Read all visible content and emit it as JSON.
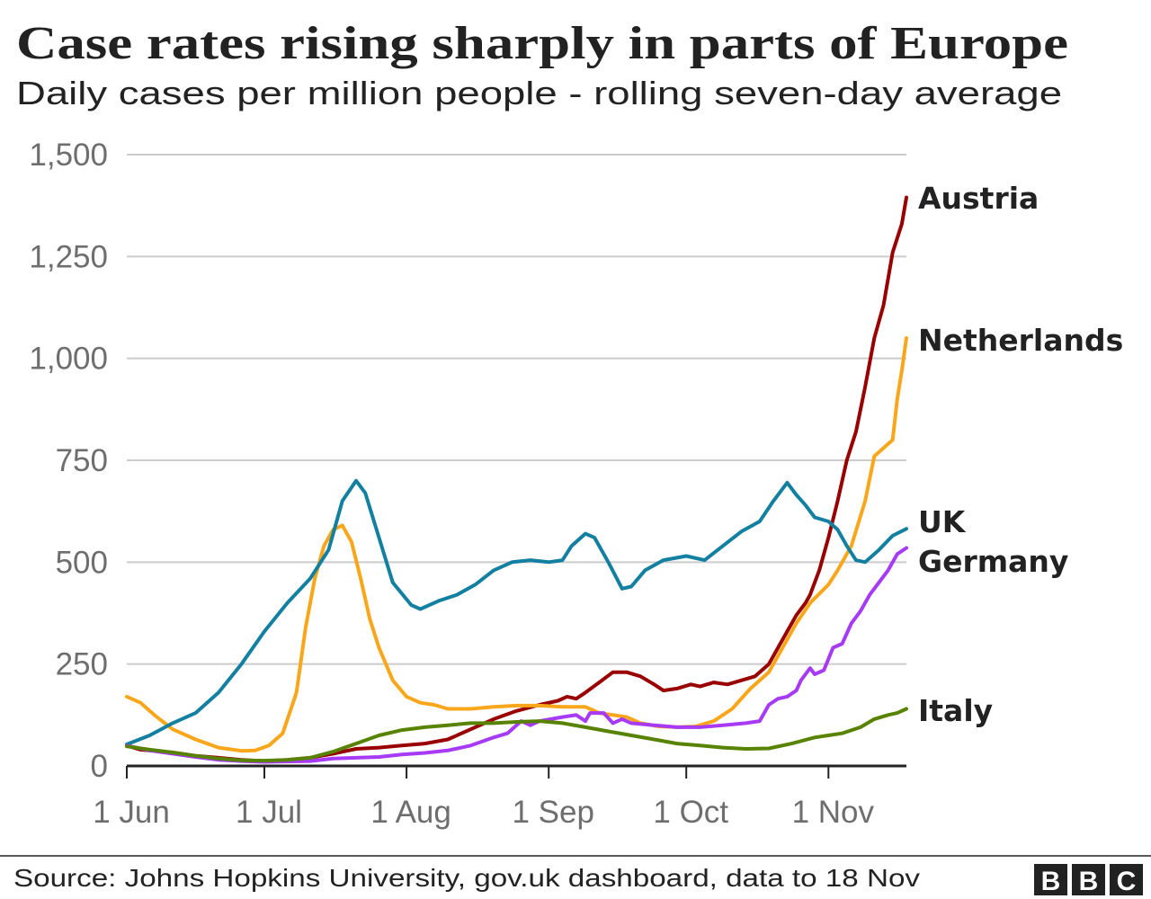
{
  "chart_data": {
    "type": "line",
    "title": "Case rates rising sharply in parts of Europe",
    "subtitle": "Daily cases per million people - rolling seven-day average",
    "xlabel": "",
    "ylabel": "",
    "ylim": [
      0,
      1500
    ],
    "xlim": [
      "1 Jun",
      "18 Nov"
    ],
    "y_ticks": [
      "0",
      "250",
      "500",
      "750",
      "1,000",
      "1,250",
      "1,500"
    ],
    "y_tick_values": [
      0,
      250,
      500,
      750,
      1000,
      1250,
      1500
    ],
    "x_ticks": [
      "1 Jun",
      "1 Jul",
      "1 Aug",
      "1 Sep",
      "1 Oct",
      "1 Nov"
    ],
    "grid": "horizontal",
    "legend": "direct labels at line ends",
    "series": [
      {
        "name": "Austria",
        "color": "#990000",
        "points": [
          [
            "1 Jun",
            50
          ],
          [
            "4 Jun",
            40
          ],
          [
            "7 Jun",
            37
          ],
          [
            "11 Jun",
            33
          ],
          [
            "16 Jun",
            25
          ],
          [
            "21 Jun",
            20
          ],
          [
            "26 Jun",
            15
          ],
          [
            "1 Jul",
            12
          ],
          [
            "6 Jul",
            15
          ],
          [
            "11 Jul",
            20
          ],
          [
            "16 Jul",
            30
          ],
          [
            "21 Jul",
            42
          ],
          [
            "26 Jul",
            45
          ],
          [
            "31 Jul",
            50
          ],
          [
            "5 Aug",
            55
          ],
          [
            "10 Aug",
            65
          ],
          [
            "15 Aug",
            90
          ],
          [
            "20 Aug",
            115
          ],
          [
            "25 Aug",
            135
          ],
          [
            "30 Aug",
            150
          ],
          [
            "3 Sep",
            160
          ],
          [
            "5 Sep",
            170
          ],
          [
            "7 Sep",
            165
          ],
          [
            "9 Sep",
            180
          ],
          [
            "12 Sep",
            205
          ],
          [
            "15 Sep",
            230
          ],
          [
            "18 Sep",
            230
          ],
          [
            "21 Sep",
            220
          ],
          [
            "24 Sep",
            200
          ],
          [
            "26 Sep",
            185
          ],
          [
            "29 Sep",
            190
          ],
          [
            "2 Oct",
            200
          ],
          [
            "4 Oct",
            195
          ],
          [
            "7 Oct",
            205
          ],
          [
            "10 Oct",
            200
          ],
          [
            "13 Oct",
            210
          ],
          [
            "16 Oct",
            220
          ],
          [
            "19 Oct",
            250
          ],
          [
            "21 Oct",
            290
          ],
          [
            "23 Oct",
            330
          ],
          [
            "25 Oct",
            370
          ],
          [
            "27 Oct",
            400
          ],
          [
            "28 Oct",
            420
          ],
          [
            "30 Oct",
            480
          ],
          [
            "1 Nov",
            560
          ],
          [
            "3 Nov",
            650
          ],
          [
            "5 Nov",
            750
          ],
          [
            "7 Nov",
            820
          ],
          [
            "9 Nov",
            930
          ],
          [
            "11 Nov",
            1050
          ],
          [
            "13 Nov",
            1130
          ],
          [
            "15 Nov",
            1260
          ],
          [
            "17 Nov",
            1330
          ],
          [
            "18 Nov",
            1395
          ]
        ]
      },
      {
        "name": "Netherlands",
        "color": "#FAA61A",
        "points": [
          [
            "1 Jun",
            170
          ],
          [
            "4 Jun",
            155
          ],
          [
            "7 Jun",
            125
          ],
          [
            "11 Jun",
            90
          ],
          [
            "16 Jun",
            65
          ],
          [
            "21 Jun",
            45
          ],
          [
            "26 Jun",
            37
          ],
          [
            "29 Jun",
            38
          ],
          [
            "2 Jul",
            50
          ],
          [
            "5 Jul",
            80
          ],
          [
            "8 Jul",
            180
          ],
          [
            "10 Jul",
            340
          ],
          [
            "12 Jul",
            460
          ],
          [
            "14 Jul",
            540
          ],
          [
            "16 Jul",
            580
          ],
          [
            "18 Jul",
            590
          ],
          [
            "20 Jul",
            550
          ],
          [
            "22 Jul",
            460
          ],
          [
            "24 Jul",
            360
          ],
          [
            "26 Jul",
            290
          ],
          [
            "29 Jul",
            210
          ],
          [
            "1 Aug",
            170
          ],
          [
            "4 Aug",
            155
          ],
          [
            "7 Aug",
            150
          ],
          [
            "10 Aug",
            140
          ],
          [
            "15 Aug",
            140
          ],
          [
            "20 Aug",
            145
          ],
          [
            "25 Aug",
            148
          ],
          [
            "30 Aug",
            148
          ],
          [
            "4 Sep",
            145
          ],
          [
            "9 Sep",
            145
          ],
          [
            "12 Sep",
            130
          ],
          [
            "15 Sep",
            125
          ],
          [
            "18 Sep",
            120
          ],
          [
            "21 Sep",
            105
          ],
          [
            "25 Sep",
            97
          ],
          [
            "29 Sep",
            95
          ],
          [
            "3 Oct",
            97
          ],
          [
            "7 Oct",
            110
          ],
          [
            "11 Oct",
            140
          ],
          [
            "15 Oct",
            190
          ],
          [
            "19 Oct",
            230
          ],
          [
            "22 Oct",
            290
          ],
          [
            "25 Oct",
            350
          ],
          [
            "28 Oct",
            400
          ],
          [
            "1 Nov",
            445
          ],
          [
            "3 Nov",
            480
          ],
          [
            "6 Nov",
            540
          ],
          [
            "9 Nov",
            650
          ],
          [
            "11 Nov",
            760
          ],
          [
            "13 Nov",
            780
          ],
          [
            "15 Nov",
            800
          ],
          [
            "16 Nov",
            900
          ],
          [
            "17 Nov",
            970
          ],
          [
            "18 Nov",
            1050
          ]
        ]
      },
      {
        "name": "UK",
        "color": "#1380A1",
        "points": [
          [
            "1 Jun",
            53
          ],
          [
            "6 Jun",
            75
          ],
          [
            "11 Jun",
            105
          ],
          [
            "16 Jun",
            130
          ],
          [
            "21 Jun",
            180
          ],
          [
            "26 Jun",
            250
          ],
          [
            "1 Jul",
            330
          ],
          [
            "6 Jul",
            400
          ],
          [
            "11 Jul",
            460
          ],
          [
            "15 Jul",
            530
          ],
          [
            "18 Jul",
            650
          ],
          [
            "21 Jul",
            700
          ],
          [
            "23 Jul",
            670
          ],
          [
            "26 Jul",
            560
          ],
          [
            "29 Jul",
            450
          ],
          [
            "2 Aug",
            395
          ],
          [
            "4 Aug",
            385
          ],
          [
            "8 Aug",
            405
          ],
          [
            "12 Aug",
            420
          ],
          [
            "16 Aug",
            445
          ],
          [
            "20 Aug",
            480
          ],
          [
            "24 Aug",
            500
          ],
          [
            "28 Aug",
            505
          ],
          [
            "1 Sep",
            500
          ],
          [
            "4 Sep",
            505
          ],
          [
            "6 Sep",
            540
          ],
          [
            "9 Sep",
            570
          ],
          [
            "11 Sep",
            560
          ],
          [
            "14 Sep",
            500
          ],
          [
            "17 Sep",
            435
          ],
          [
            "19 Sep",
            440
          ],
          [
            "22 Sep",
            480
          ],
          [
            "26 Sep",
            505
          ],
          [
            "1 Oct",
            515
          ],
          [
            "5 Oct",
            505
          ],
          [
            "9 Oct",
            540
          ],
          [
            "13 Oct",
            575
          ],
          [
            "17 Oct",
            600
          ],
          [
            "20 Oct",
            650
          ],
          [
            "23 Oct",
            695
          ],
          [
            "25 Oct",
            665
          ],
          [
            "27 Oct",
            640
          ],
          [
            "29 Oct",
            610
          ],
          [
            "1 Nov",
            600
          ],
          [
            "3 Nov",
            580
          ],
          [
            "5 Nov",
            540
          ],
          [
            "7 Nov",
            505
          ],
          [
            "9 Nov",
            500
          ],
          [
            "12 Nov",
            530
          ],
          [
            "15 Nov",
            565
          ],
          [
            "18 Nov",
            582
          ]
        ]
      },
      {
        "name": "Germany",
        "color": "#A63AF5",
        "points": [
          [
            "1 Jun",
            50
          ],
          [
            "6 Jun",
            38
          ],
          [
            "11 Jun",
            30
          ],
          [
            "16 Jun",
            22
          ],
          [
            "21 Jun",
            15
          ],
          [
            "26 Jun",
            12
          ],
          [
            "1 Jul",
            10
          ],
          [
            "11 Jul",
            12
          ],
          [
            "16 Jul",
            18
          ],
          [
            "21 Jul",
            20
          ],
          [
            "26 Jul",
            22
          ],
          [
            "31 Jul",
            28
          ],
          [
            "5 Aug",
            32
          ],
          [
            "10 Aug",
            38
          ],
          [
            "15 Aug",
            50
          ],
          [
            "20 Aug",
            70
          ],
          [
            "23 Aug",
            80
          ],
          [
            "26 Aug",
            110
          ],
          [
            "28 Aug",
            100
          ],
          [
            "30 Aug",
            110
          ],
          [
            "4 Sep",
            120
          ],
          [
            "7 Sep",
            125
          ],
          [
            "9 Sep",
            110
          ],
          [
            "10 Sep",
            130
          ],
          [
            "13 Sep",
            130
          ],
          [
            "15 Sep",
            105
          ],
          [
            "17 Sep",
            115
          ],
          [
            "19 Sep",
            105
          ],
          [
            "24 Sep",
            100
          ],
          [
            "29 Sep",
            95
          ],
          [
            "4 Oct",
            95
          ],
          [
            "9 Oct",
            100
          ],
          [
            "14 Oct",
            105
          ],
          [
            "17 Oct",
            110
          ],
          [
            "19 Oct",
            150
          ],
          [
            "21 Oct",
            165
          ],
          [
            "23 Oct",
            170
          ],
          [
            "25 Oct",
            185
          ],
          [
            "26 Oct",
            210
          ],
          [
            "28 Oct",
            240
          ],
          [
            "29 Oct",
            225
          ],
          [
            "31 Oct",
            235
          ],
          [
            "2 Nov",
            290
          ],
          [
            "4 Nov",
            300
          ],
          [
            "6 Nov",
            350
          ],
          [
            "8 Nov",
            380
          ],
          [
            "10 Nov",
            420
          ],
          [
            "12 Nov",
            450
          ],
          [
            "14 Nov",
            480
          ],
          [
            "16 Nov",
            520
          ],
          [
            "18 Nov",
            535
          ]
        ]
      },
      {
        "name": "Italy",
        "color": "#588300",
        "points": [
          [
            "1 Jun",
            48
          ],
          [
            "6 Jun",
            40
          ],
          [
            "11 Jun",
            33
          ],
          [
            "16 Jun",
            25
          ],
          [
            "21 Jun",
            18
          ],
          [
            "26 Jun",
            14
          ],
          [
            "1 Jul",
            13
          ],
          [
            "6 Jul",
            15
          ],
          [
            "11 Jul",
            20
          ],
          [
            "16 Jul",
            35
          ],
          [
            "21 Jul",
            55
          ],
          [
            "26 Jul",
            75
          ],
          [
            "31 Jul",
            88
          ],
          [
            "5 Aug",
            95
          ],
          [
            "10 Aug",
            100
          ],
          [
            "15 Aug",
            105
          ],
          [
            "20 Aug",
            105
          ],
          [
            "25 Aug",
            108
          ],
          [
            "30 Aug",
            110
          ],
          [
            "4 Sep",
            105
          ],
          [
            "9 Sep",
            95
          ],
          [
            "14 Sep",
            85
          ],
          [
            "19 Sep",
            75
          ],
          [
            "24 Sep",
            65
          ],
          [
            "29 Sep",
            55
          ],
          [
            "4 Oct",
            50
          ],
          [
            "9 Oct",
            45
          ],
          [
            "14 Oct",
            42
          ],
          [
            "19 Oct",
            43
          ],
          [
            "24 Oct",
            55
          ],
          [
            "29 Oct",
            70
          ],
          [
            "1 Nov",
            75
          ],
          [
            "4 Nov",
            80
          ],
          [
            "8 Nov",
            95
          ],
          [
            "11 Nov",
            115
          ],
          [
            "14 Nov",
            125
          ],
          [
            "16 Nov",
            130
          ],
          [
            "18 Nov",
            140
          ]
        ]
      }
    ]
  },
  "footer": {
    "source": "Source: Johns Hopkins University, gov.uk dashboard, data to 18 Nov",
    "logo": "BBC"
  }
}
